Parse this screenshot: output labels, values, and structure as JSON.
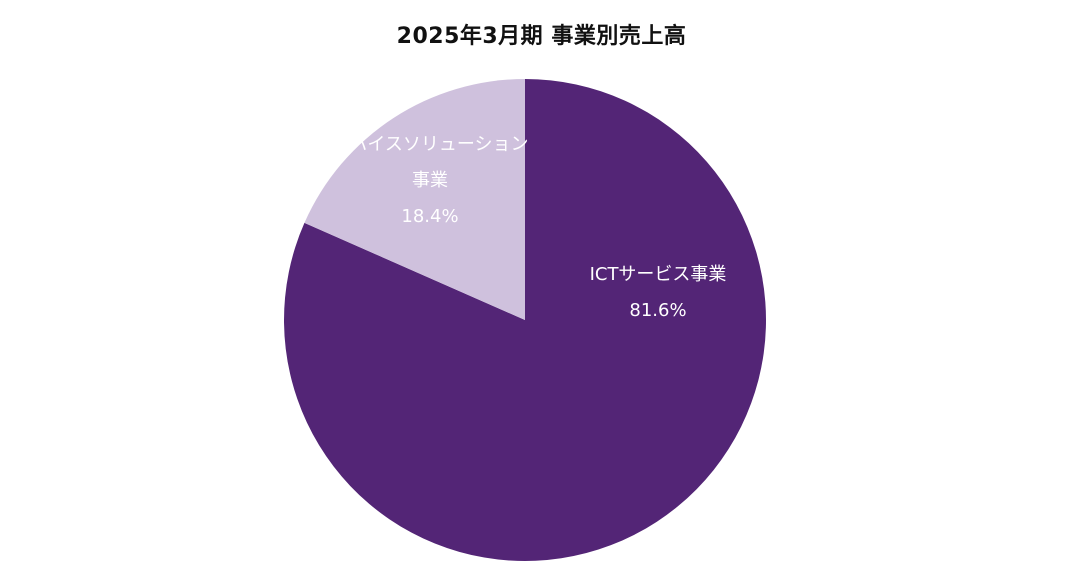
{
  "chart_data": {
    "type": "pie",
    "title": "2025年3月期 事業別売上高",
    "categories": [
      "ICTサービス事業",
      "デバイスソリューション事業"
    ],
    "values": [
      81.6,
      18.4
    ],
    "unit": "%",
    "labels": [
      {
        "name_lines": [
          "ICTサービス事業"
        ],
        "value_text": "81.6%"
      },
      {
        "name_lines": [
          "デバイスソリューション",
          "事業"
        ],
        "value_text": "18.4%"
      }
    ],
    "colors": [
      "#532576",
      "#cfc1dd"
    ],
    "label_colors": [
      "#ffffff",
      "#ffffff"
    ],
    "start_angle_deg": 0,
    "direction": "clockwise",
    "legend": "none"
  }
}
